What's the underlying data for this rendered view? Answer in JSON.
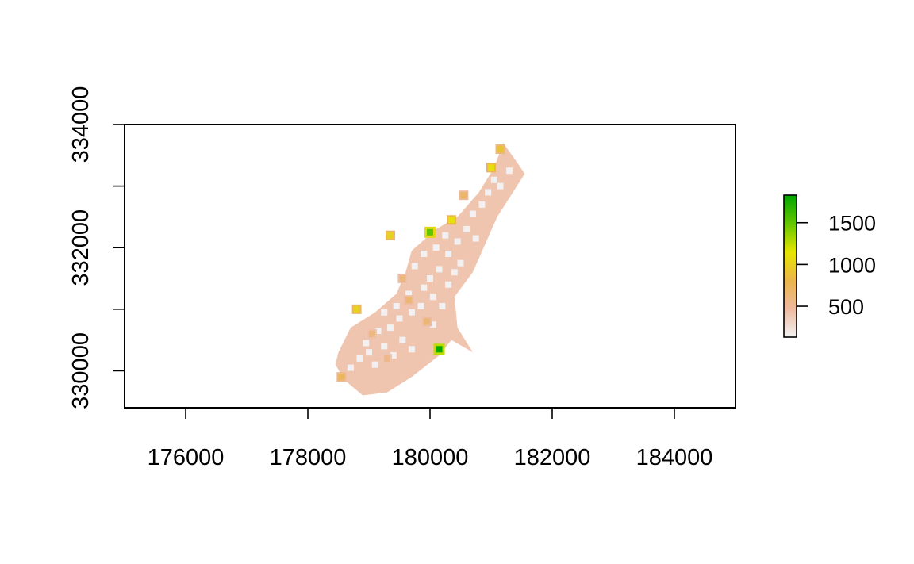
{
  "chart_data": {
    "type": "heatmap",
    "title": "",
    "xlabel": "",
    "ylabel": "",
    "xlim": [
      175000,
      185000
    ],
    "ylim": [
      329400,
      334000
    ],
    "x_ticks": [
      176000,
      178000,
      180000,
      182000,
      184000
    ],
    "x_tick_labels": [
      "176000",
      "178000",
      "180000",
      "182000",
      "184000"
    ],
    "y_ticks": [
      330000,
      331000,
      332000,
      333000,
      334000
    ],
    "y_tick_labels_shown": [
      "330000",
      "332000",
      "334000"
    ],
    "legend": {
      "placement": "right",
      "range": [
        130,
        1830
      ],
      "ticks": [
        500,
        1000,
        1500
      ],
      "tick_labels": [
        "500",
        "1000",
        "1500"
      ],
      "colors": [
        "#f2f2f2",
        "#eeb99f",
        "#eab64a",
        "#e6e600",
        "#63c600",
        "#00a600"
      ]
    },
    "region_outline": [
      [
        178500,
        330300
      ],
      [
        178700,
        330700
      ],
      [
        179100,
        330950
      ],
      [
        179450,
        331250
      ],
      [
        179600,
        331600
      ],
      [
        179700,
        331950
      ],
      [
        180100,
        332300
      ],
      [
        180450,
        332500
      ],
      [
        180800,
        332900
      ],
      [
        181050,
        333300
      ],
      [
        181200,
        333700
      ],
      [
        181450,
        333350
      ],
      [
        181550,
        333200
      ],
      [
        181100,
        332500
      ],
      [
        180700,
        331600
      ],
      [
        180400,
        331200
      ],
      [
        180450,
        330700
      ],
      [
        180700,
        330300
      ],
      [
        180350,
        330500
      ],
      [
        180150,
        330250
      ],
      [
        179700,
        329900
      ],
      [
        179300,
        329650
      ],
      [
        178900,
        329600
      ],
      [
        178600,
        329850
      ],
      [
        178450,
        330100
      ]
    ],
    "hotspots": [
      {
        "x": 180150,
        "y": 330350,
        "value": 1800
      },
      {
        "x": 180000,
        "y": 332250,
        "value": 1500
      },
      {
        "x": 180350,
        "y": 332450,
        "value": 1100
      },
      {
        "x": 179350,
        "y": 332200,
        "value": 1000
      },
      {
        "x": 181000,
        "y": 333300,
        "value": 1100
      },
      {
        "x": 181150,
        "y": 333600,
        "value": 900
      },
      {
        "x": 178800,
        "y": 331000,
        "value": 1000
      },
      {
        "x": 178550,
        "y": 329900,
        "value": 750
      },
      {
        "x": 179650,
        "y": 331150,
        "value": 650
      },
      {
        "x": 179950,
        "y": 330800,
        "value": 650
      },
      {
        "x": 179050,
        "y": 330600,
        "value": 600
      },
      {
        "x": 179300,
        "y": 330200,
        "value": 550
      },
      {
        "x": 180550,
        "y": 332850,
        "value": 700
      },
      {
        "x": 179550,
        "y": 331500,
        "value": 600
      }
    ],
    "sample_points": [
      [
        178700,
        330050
      ],
      [
        178850,
        330200
      ],
      [
        179000,
        330300
      ],
      [
        179100,
        330100
      ],
      [
        179250,
        330400
      ],
      [
        179400,
        330250
      ],
      [
        179550,
        330500
      ],
      [
        179700,
        330350
      ],
      [
        179150,
        330650
      ],
      [
        179350,
        330700
      ],
      [
        179500,
        330850
      ],
      [
        179700,
        330950
      ],
      [
        179850,
        331050
      ],
      [
        179650,
        331250
      ],
      [
        179900,
        331350
      ],
      [
        180050,
        331200
      ],
      [
        180200,
        331050
      ],
      [
        180000,
        331500
      ],
      [
        180150,
        331650
      ],
      [
        180300,
        331400
      ],
      [
        179750,
        331700
      ],
      [
        179900,
        331900
      ],
      [
        180100,
        332000
      ],
      [
        180300,
        331900
      ],
      [
        180450,
        332100
      ],
      [
        180600,
        332300
      ],
      [
        180700,
        332550
      ],
      [
        180850,
        332700
      ],
      [
        180950,
        332900
      ],
      [
        181050,
        333100
      ],
      [
        181150,
        333000
      ],
      [
        181300,
        333250
      ],
      [
        180500,
        331750
      ],
      [
        180250,
        332200
      ],
      [
        180750,
        332150
      ],
      [
        180400,
        331600
      ],
      [
        179450,
        331050
      ],
      [
        179250,
        330950
      ],
      [
        178950,
        330450
      ],
      [
        180050,
        330750
      ]
    ]
  }
}
